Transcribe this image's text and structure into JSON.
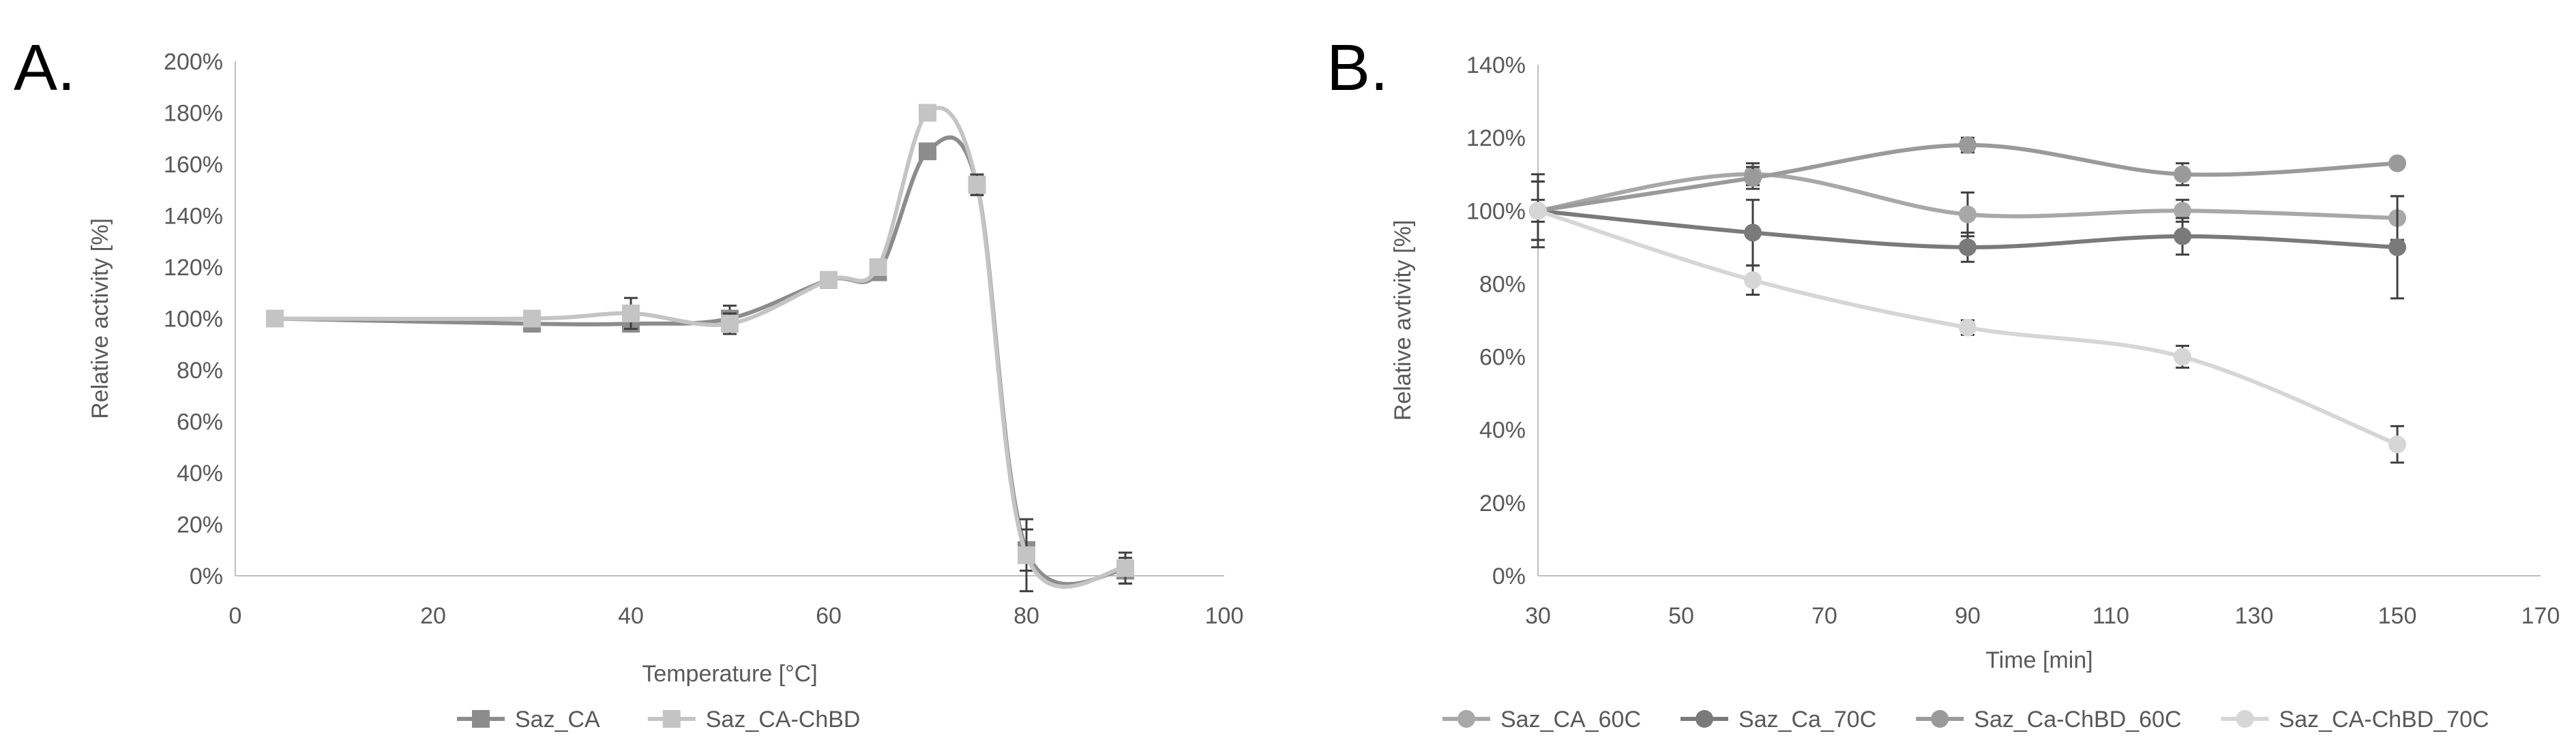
{
  "chart_data": [
    {
      "panel_label": "A.",
      "type": "line",
      "title": "",
      "xlabel": "Temperature [°C]",
      "ylabel": "Relative activity [%]",
      "xlim": [
        0,
        100
      ],
      "ylim": [
        0,
        200
      ],
      "x_ticks": [
        0,
        20,
        40,
        60,
        80,
        100
      ],
      "y_ticks": [
        0,
        20,
        40,
        60,
        80,
        100,
        120,
        140,
        160,
        180,
        200
      ],
      "x_tick_labels": [
        "0",
        "20",
        "40",
        "60",
        "80",
        "100"
      ],
      "y_tick_labels": [
        "0%",
        "20%",
        "40%",
        "60%",
        "80%",
        "100%",
        "120%",
        "140%",
        "160%",
        "180%",
        "200%"
      ],
      "grid": false,
      "legend_position": "bottom",
      "marker": "square",
      "series": [
        {
          "name": "Saz_CA",
          "color": "#8c8c8c",
          "x": [
            4,
            30,
            40,
            50,
            60,
            65,
            70,
            75,
            80,
            90
          ],
          "values": [
            100,
            98,
            98,
            100,
            115,
            118,
            165,
            152,
            10,
            2
          ],
          "errors": [
            1,
            2,
            3,
            5,
            3,
            3,
            2,
            4,
            8,
            5
          ]
        },
        {
          "name": "Saz_CA-ChBD",
          "color": "#c4c4c4",
          "x": [
            4,
            30,
            40,
            50,
            60,
            65,
            70,
            75,
            80,
            90
          ],
          "values": [
            100,
            100,
            102,
            98,
            115,
            120,
            180,
            152,
            8,
            3
          ],
          "errors": [
            1,
            3,
            6,
            4,
            3,
            3,
            2,
            4,
            14,
            6
          ]
        }
      ]
    },
    {
      "panel_label": "B.",
      "type": "line",
      "title": "",
      "xlabel": "Time [min]",
      "ylabel": "Relative avtivity [%]",
      "xlim": [
        30,
        170
      ],
      "ylim": [
        0,
        140
      ],
      "x_ticks": [
        30,
        50,
        70,
        90,
        110,
        130,
        150,
        170
      ],
      "y_ticks": [
        0,
        20,
        40,
        60,
        80,
        100,
        120,
        140
      ],
      "x_tick_labels": [
        "30",
        "50",
        "70",
        "90",
        "110",
        "130",
        "150",
        "170"
      ],
      "y_tick_labels": [
        "0%",
        "20%",
        "40%",
        "60%",
        "80%",
        "100%",
        "120%",
        "140%"
      ],
      "grid": false,
      "legend_position": "bottom",
      "marker": "circle",
      "series": [
        {
          "name": "Saz_CA_60C",
          "color": "#a8a8a8",
          "x": [
            30,
            60,
            90,
            120,
            150
          ],
          "values": [
            100,
            110,
            99,
            100,
            98
          ],
          "errors": [
            8,
            3,
            6,
            3,
            6
          ]
        },
        {
          "name": "Saz_Ca_70C",
          "color": "#7a7a7a",
          "x": [
            30,
            60,
            90,
            120,
            150
          ],
          "values": [
            100,
            94,
            90,
            93,
            90
          ],
          "errors": [
            8,
            9,
            4,
            5,
            14
          ]
        },
        {
          "name": "Saz_Ca-ChBD_60C",
          "color": "#9a9a9a",
          "x": [
            30,
            60,
            90,
            120,
            150
          ],
          "values": [
            100,
            109,
            118,
            110,
            113
          ],
          "errors": [
            10,
            3,
            2,
            3,
            1
          ]
        },
        {
          "name": "Saz_CA-ChBD_70C",
          "color": "#d6d6d6",
          "x": [
            30,
            60,
            90,
            120,
            150
          ],
          "values": [
            100,
            81,
            68,
            60,
            36
          ],
          "errors": [
            3,
            4,
            2,
            3,
            5
          ]
        }
      ]
    }
  ]
}
